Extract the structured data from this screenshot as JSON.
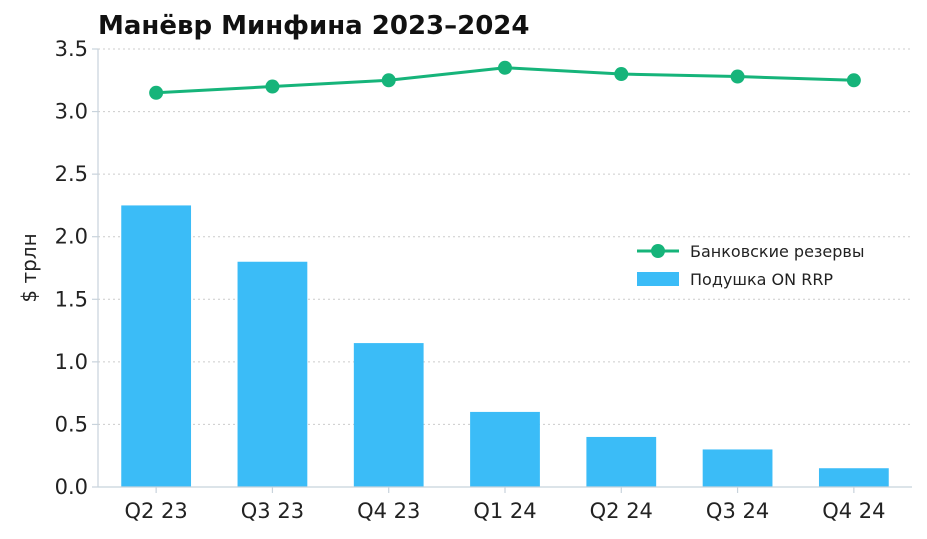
{
  "chart_data": {
    "type": "bar",
    "title": "Манёвр Минфина 2023–2024",
    "xlabel": "",
    "ylabel": "$ трлн",
    "categories": [
      "Q2 23",
      "Q3 23",
      "Q4 23",
      "Q1 24",
      "Q2 24",
      "Q3 24",
      "Q4 24"
    ],
    "ylim": [
      0,
      3.5
    ],
    "yticks": [
      "0.0",
      "0.5",
      "1.0",
      "1.5",
      "2.0",
      "2.5",
      "3.0",
      "3.5"
    ],
    "ytick_values": [
      0,
      0.5,
      1.0,
      1.5,
      2.0,
      2.5,
      3.0,
      3.5
    ],
    "grid": true,
    "legend_position": "center-right",
    "series": [
      {
        "name": "Банковские резервы",
        "type": "line",
        "color": "#16b47a",
        "values": [
          3.15,
          3.2,
          3.25,
          3.35,
          3.3,
          3.28,
          3.25
        ]
      },
      {
        "name": "Подушка ON RRP",
        "type": "bar",
        "color": "#3bbcf7",
        "values": [
          2.25,
          1.8,
          1.15,
          0.6,
          0.4,
          0.3,
          0.15
        ]
      }
    ]
  }
}
